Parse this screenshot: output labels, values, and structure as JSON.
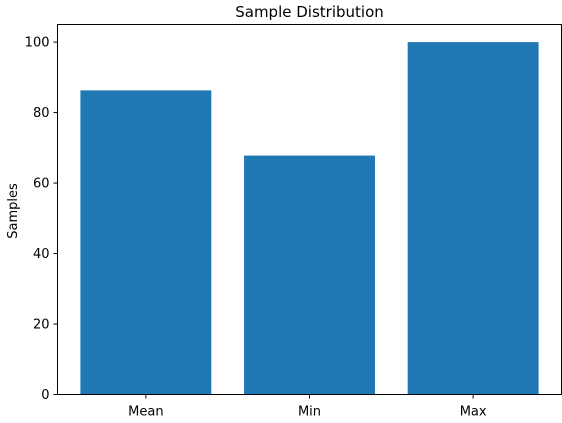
{
  "chart_data": {
    "type": "bar",
    "title": "Sample Distribution",
    "xlabel": "",
    "ylabel": "Samples",
    "categories": [
      "Mean",
      "Min",
      "Max"
    ],
    "values": [
      86.3,
      67.8,
      100.0
    ],
    "ylim": [
      0,
      105
    ],
    "yticks": [
      0,
      20,
      40,
      60,
      80,
      100
    ],
    "bar_color": "#1f77b4",
    "grid": false,
    "legend": "none"
  }
}
